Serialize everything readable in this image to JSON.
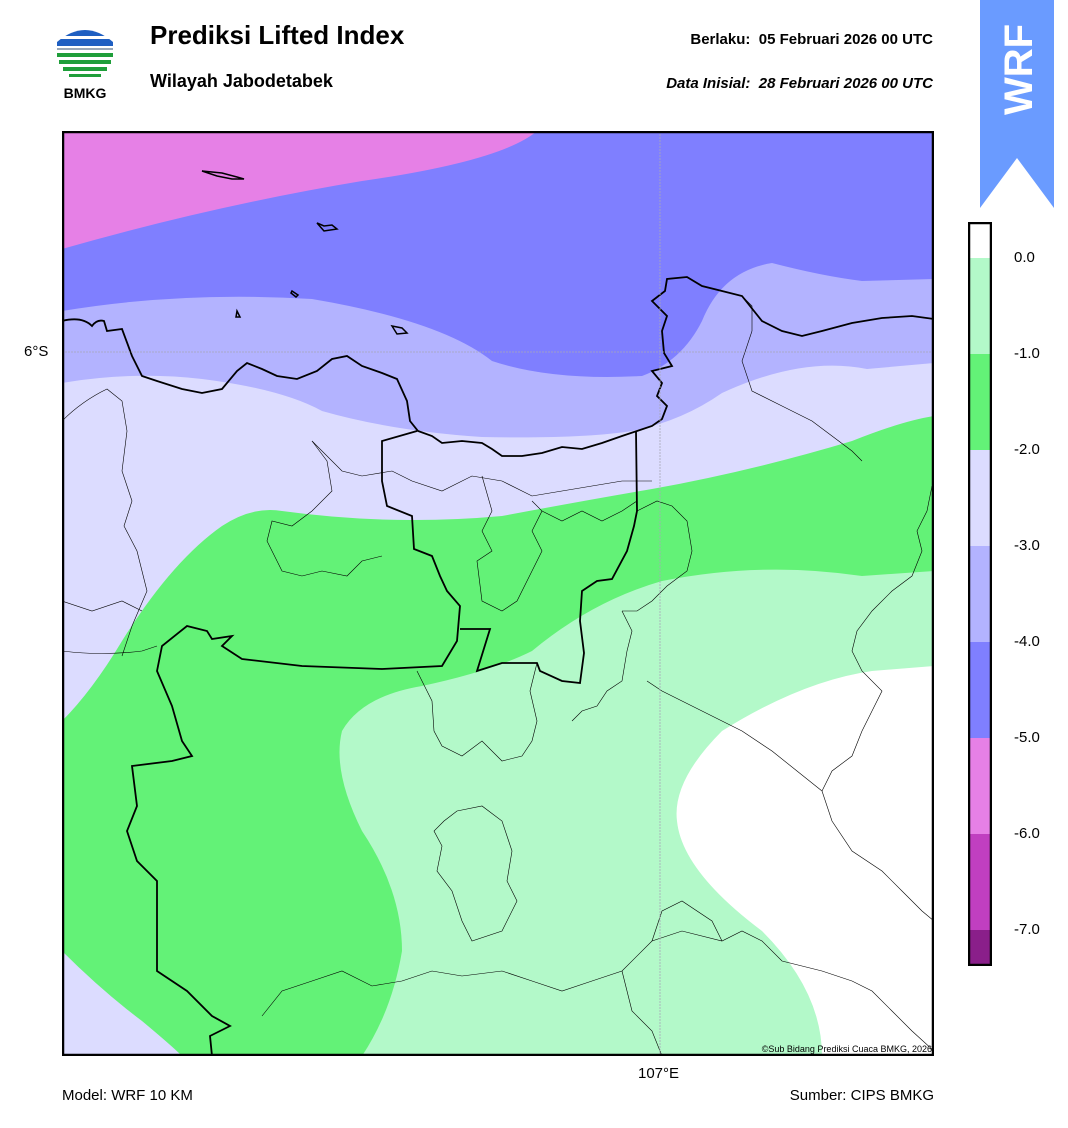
{
  "header": {
    "title": "Prediksi Lifted Index",
    "subtitle": "Wilayah Jabodetabek",
    "berlaku_label": "Berlaku:",
    "berlaku_value": "05 Februari 2026 00 UTC",
    "inisial_label": "Data Inisial:",
    "inisial_value": "28 Februari 2026 00 UTC"
  },
  "logo": {
    "text": "BMKG",
    "icon": "bmkg-logo-icon"
  },
  "badge": {
    "text": "WRF",
    "color": "#6a9bff"
  },
  "map": {
    "lat_label": "6°S",
    "lon_label": "107°E",
    "credit": "©Sub Bidang Prediksi Cuaca BMKG, 2026"
  },
  "footer": {
    "model": "Model: WRF 10 KM",
    "source": "Sumber: CIPS BMKG"
  },
  "colorbar": {
    "ticks": [
      "0.0",
      "-1.0",
      "-2.0",
      "-3.0",
      "-4.0",
      "-5.0",
      "-6.0",
      "-7.0"
    ],
    "bands": [
      {
        "range": "> 0.0",
        "color": "#ffffff"
      },
      {
        "range": "0.0 to -1.0",
        "color": "#b3f9c9"
      },
      {
        "range": "-1.0 to -2.0",
        "color": "#63f277"
      },
      {
        "range": "-2.0 to -3.0",
        "color": "#dcdcff"
      },
      {
        "range": "-3.0 to -4.0",
        "color": "#b3b3ff"
      },
      {
        "range": "-4.0 to -5.0",
        "color": "#7f7fff"
      },
      {
        "range": "-5.0 to -6.0",
        "color": "#e680e6"
      },
      {
        "range": "-6.0 to -7.0",
        "color": "#c03fc0"
      },
      {
        "range": "< -7.0",
        "color": "#8a1f8a"
      }
    ]
  }
}
